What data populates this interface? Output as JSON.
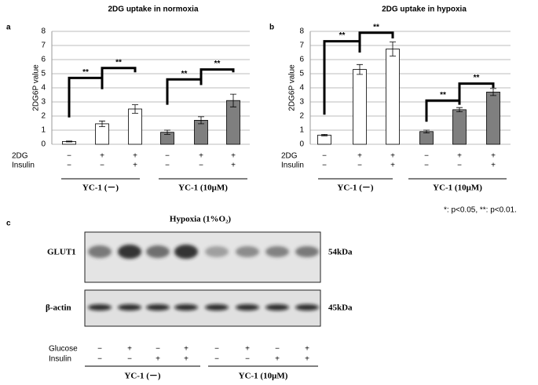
{
  "chart_data": [
    {
      "type": "bar",
      "panel": "a",
      "title": "2DG uptake in normoxia",
      "ylabel": "2DG6P value",
      "values": [
        0.2,
        1.45,
        2.5,
        0.85,
        1.7,
        3.1
      ],
      "errors": [
        0.03,
        0.2,
        0.3,
        0.15,
        0.25,
        0.45
      ],
      "colors": [
        "#ffffff",
        "#ffffff",
        "#ffffff",
        "#7f7f7f",
        "#7f7f7f",
        "#7f7f7f"
      ],
      "ylim": [
        0,
        8
      ],
      "yticks": [
        0,
        1,
        2,
        3,
        4,
        5,
        6,
        7,
        8
      ],
      "grid": true,
      "condition_rows": [
        {
          "label": "2DG",
          "marks": [
            "−",
            "+",
            "+",
            "−",
            "+",
            "+"
          ]
        },
        {
          "label": "Insulin",
          "marks": [
            "−",
            "−",
            "+",
            "−",
            "−",
            "+"
          ]
        }
      ],
      "groups": [
        "YC-1 (－)",
        "YC-1 (10μM)"
      ],
      "annotations": [
        "**",
        "**",
        "**",
        "**"
      ]
    },
    {
      "type": "bar",
      "panel": "b",
      "title": "2DG uptake in hypoxia",
      "ylabel": "2DG6P value",
      "values": [
        0.65,
        5.3,
        6.75,
        0.9,
        2.45,
        3.7
      ],
      "errors": [
        0.05,
        0.35,
        0.5,
        0.1,
        0.15,
        0.25
      ],
      "colors": [
        "#ffffff",
        "#ffffff",
        "#ffffff",
        "#7f7f7f",
        "#7f7f7f",
        "#7f7f7f"
      ],
      "ylim": [
        0,
        8
      ],
      "yticks": [
        0,
        1,
        2,
        3,
        4,
        5,
        6,
        7,
        8
      ],
      "grid": true,
      "condition_rows": [
        {
          "label": "2DG",
          "marks": [
            "−",
            "+",
            "+",
            "−",
            "+",
            "+"
          ]
        },
        {
          "label": "Insulin",
          "marks": [
            "−",
            "−",
            "+",
            "−",
            "−",
            "+"
          ]
        }
      ],
      "groups": [
        "YC-1 (－)",
        "YC-1 (10μM)"
      ],
      "annotations": [
        "**",
        "**",
        "**",
        "**"
      ]
    }
  ],
  "footnote": "*: p<0.05, **: p<0.01.",
  "blot": {
    "panel": "c",
    "title": "Hypoxia (1%O₂)",
    "rows": [
      {
        "label": "GLUT1",
        "size": "54kDa"
      },
      {
        "label": "β-actin",
        "size": "45kDa"
      }
    ],
    "condition_rows": [
      {
        "label": "Glucose",
        "marks": [
          "−",
          "+",
          "−",
          "+",
          "−",
          "+",
          "−",
          "+"
        ]
      },
      {
        "label": "Insulin",
        "marks": [
          "−",
          "−",
          "+",
          "+",
          "−",
          "−",
          "+",
          "+"
        ]
      }
    ],
    "groups": [
      "YC-1 (－)",
      "YC-1 (10μM)"
    ]
  }
}
